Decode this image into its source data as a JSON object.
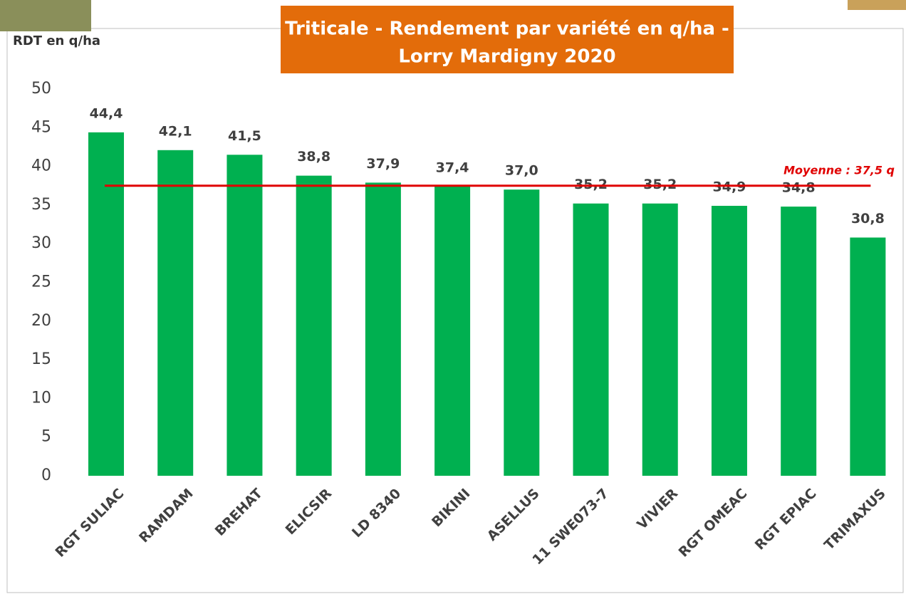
{
  "chart_data": {
    "type": "bar",
    "title": [
      "Triticale - Rendement par variété en q/ha -",
      "Lorry Mardigny 2020"
    ],
    "y_label": "RDT en q/ha",
    "categories": [
      "RGT SULIAC",
      "RAMDAM",
      "BREHAT",
      "ELICSIR",
      "LD 8340",
      "BIKINI",
      "ASELLUS",
      "11 SWE073-7",
      "VIVIER",
      "RGT OMEAC",
      "RGT EPIAC",
      "TRIMAXUS"
    ],
    "values": [
      44.4,
      42.1,
      41.5,
      38.8,
      37.9,
      37.4,
      37.0,
      35.2,
      35.2,
      34.9,
      34.8,
      30.8
    ],
    "value_labels": [
      "44,4",
      "42,1",
      "41,5",
      "38,8",
      "37,9",
      "37,4",
      "37,0",
      "35,2",
      "35,2",
      "34,9",
      "34,8",
      "30,8"
    ],
    "color": "#00b050",
    "mean_line": {
      "value": 37.5,
      "label": "Moyenne : 37,5 q",
      "color": "#e00000"
    },
    "ylim": [
      0,
      50
    ],
    "yticks": [
      0,
      5,
      10,
      15,
      20,
      25,
      30,
      35,
      40,
      45,
      50
    ],
    "grid": false
  }
}
